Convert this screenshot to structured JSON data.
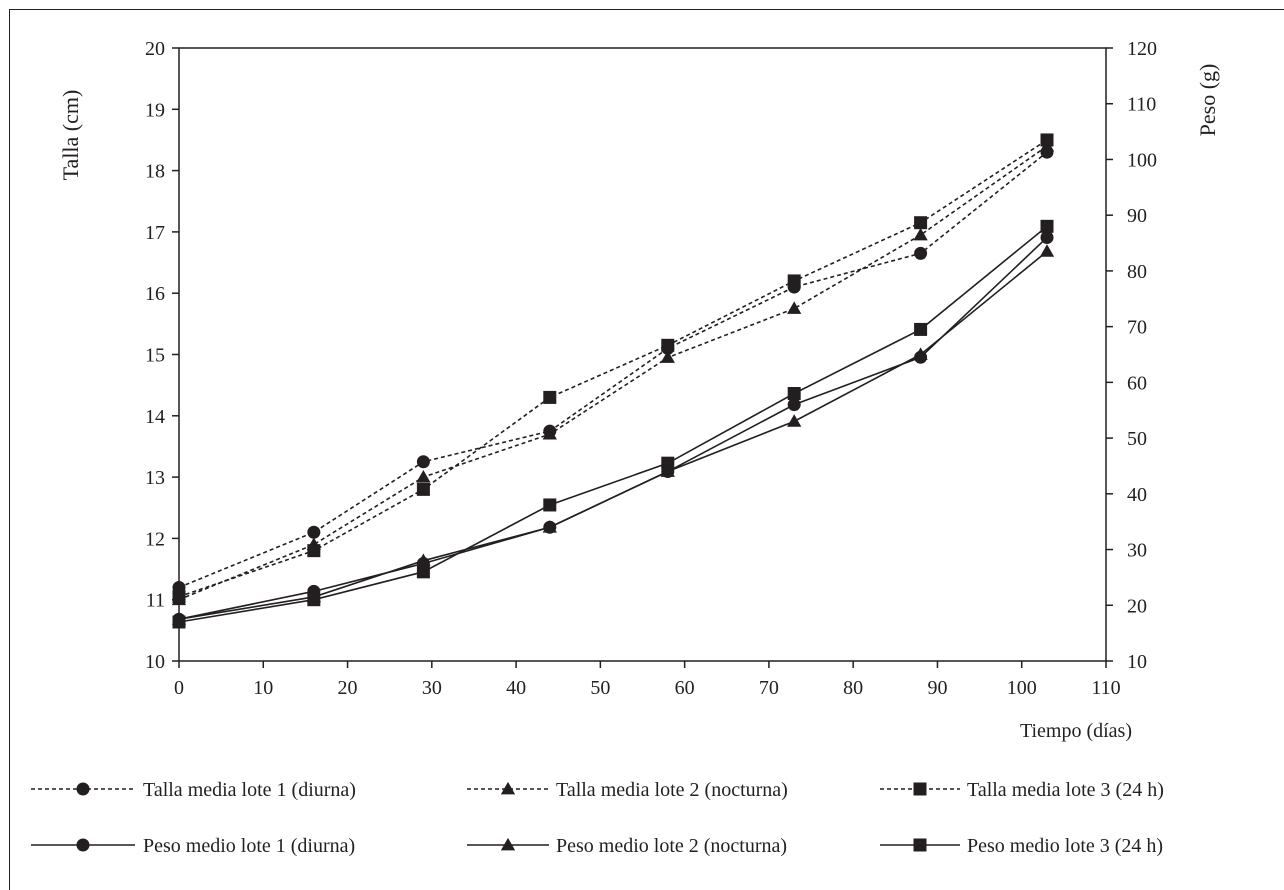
{
  "chart_data": {
    "type": "line",
    "xlabel": "Tiempo (días)",
    "ylabel_left": "Talla (cm)",
    "ylabel_right": "Peso (g)",
    "x_ticks": [
      0,
      10,
      20,
      30,
      40,
      50,
      60,
      70,
      80,
      90,
      100,
      110
    ],
    "y_left_ticks": [
      10,
      11,
      12,
      13,
      14,
      15,
      16,
      17,
      18,
      19,
      20
    ],
    "y_right_ticks": [
      10,
      20,
      30,
      40,
      50,
      60,
      70,
      80,
      90,
      100,
      110,
      120
    ],
    "xlim": [
      0,
      110
    ],
    "ylim_left": [
      10,
      20
    ],
    "ylim_right": [
      10,
      120
    ],
    "grid": false,
    "legend_position": "bottom",
    "series": [
      {
        "name": "Talla media lote 1 (diurna)",
        "axis": "left",
        "line": "dotted",
        "marker": "circle",
        "x": [
          0,
          16,
          29,
          44,
          58,
          73,
          88,
          103
        ],
        "y": [
          11.2,
          12.1,
          13.25,
          13.75,
          15.1,
          16.1,
          16.65,
          18.3
        ]
      },
      {
        "name": "Talla media lote 2 (nocturna)",
        "axis": "left",
        "line": "dotted",
        "marker": "triangle",
        "x": [
          0,
          16,
          29,
          44,
          58,
          73,
          88,
          103
        ],
        "y": [
          11.0,
          11.9,
          13.0,
          13.7,
          14.95,
          15.75,
          16.95,
          18.4
        ]
      },
      {
        "name": "Talla media lote 3 (24 h)",
        "axis": "left",
        "line": "dotted",
        "marker": "square",
        "x": [
          0,
          16,
          29,
          44,
          58,
          73,
          88,
          103
        ],
        "y": [
          11.05,
          11.8,
          12.8,
          14.3,
          15.15,
          16.2,
          17.15,
          18.5
        ]
      },
      {
        "name": "Peso medio lote 1 (diurna)",
        "axis": "right",
        "line": "solid",
        "marker": "circle",
        "x": [
          0,
          16,
          29,
          44,
          58,
          73,
          88,
          103
        ],
        "y": [
          17.5,
          22.5,
          27.5,
          34,
          44,
          56,
          64.5,
          86
        ]
      },
      {
        "name": "Peso medio lote 2 (nocturna)",
        "axis": "right",
        "line": "solid",
        "marker": "triangle",
        "x": [
          0,
          16,
          29,
          44,
          58,
          73,
          88,
          103
        ],
        "y": [
          17.5,
          21.5,
          28,
          34,
          44,
          53,
          65,
          83.5
        ]
      },
      {
        "name": "Peso medio lote 3 (24 h)",
        "axis": "right",
        "line": "solid",
        "marker": "square",
        "x": [
          0,
          16,
          29,
          44,
          58,
          73,
          88,
          103
        ],
        "y": [
          17,
          21,
          26,
          38,
          45.5,
          58,
          69.5,
          88
        ]
      }
    ]
  }
}
